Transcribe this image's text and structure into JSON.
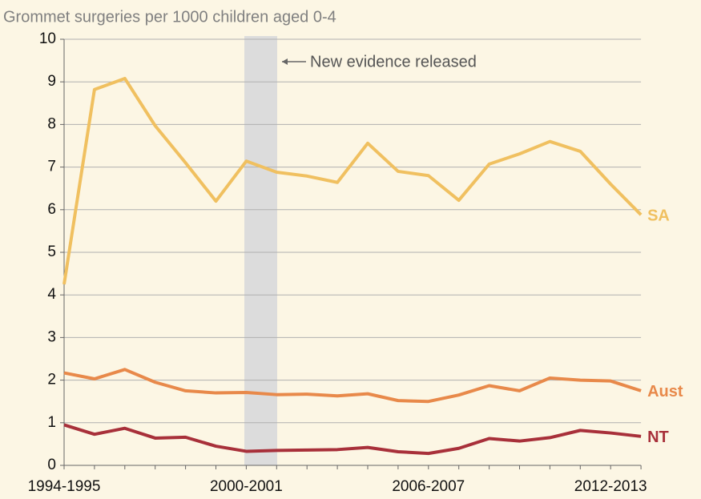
{
  "chart_data": {
    "type": "line",
    "title": "Grommet surgeries per 1000 children aged 0-4",
    "annotation": "New evidence released",
    "categories": [
      "1994-1995",
      null,
      null,
      null,
      null,
      null,
      "2000-2001",
      null,
      null,
      null,
      null,
      null,
      "2006-2007",
      null,
      null,
      null,
      null,
      null,
      "2012-2013",
      null
    ],
    "series": [
      {
        "name": "SA",
        "color": "#f0c060",
        "values": [
          4.25,
          8.82,
          9.08,
          7.97,
          7.1,
          6.2,
          7.14,
          6.88,
          6.79,
          6.64,
          7.56,
          6.9,
          6.8,
          6.22,
          7.07,
          7.31,
          7.6,
          7.37,
          6.6,
          5.88
        ]
      },
      {
        "name": "Aust",
        "color": "#e8894a",
        "values": [
          2.17,
          2.03,
          2.25,
          1.95,
          1.75,
          1.7,
          1.71,
          1.66,
          1.67,
          1.63,
          1.68,
          1.52,
          1.5,
          1.65,
          1.87,
          1.75,
          2.05,
          2.0,
          1.98,
          1.75
        ]
      },
      {
        "name": "NT",
        "color": "#a8303a",
        "values": [
          0.95,
          0.73,
          0.87,
          0.64,
          0.66,
          0.45,
          0.33,
          0.35,
          0.36,
          0.37,
          0.42,
          0.32,
          0.28,
          0.4,
          0.63,
          0.57,
          0.65,
          0.82,
          0.76,
          0.68
        ]
      }
    ],
    "ylim": [
      0,
      10
    ],
    "yticks": [
      0,
      1,
      2,
      3,
      4,
      5,
      6,
      7,
      8,
      9,
      10
    ],
    "grid": true
  }
}
